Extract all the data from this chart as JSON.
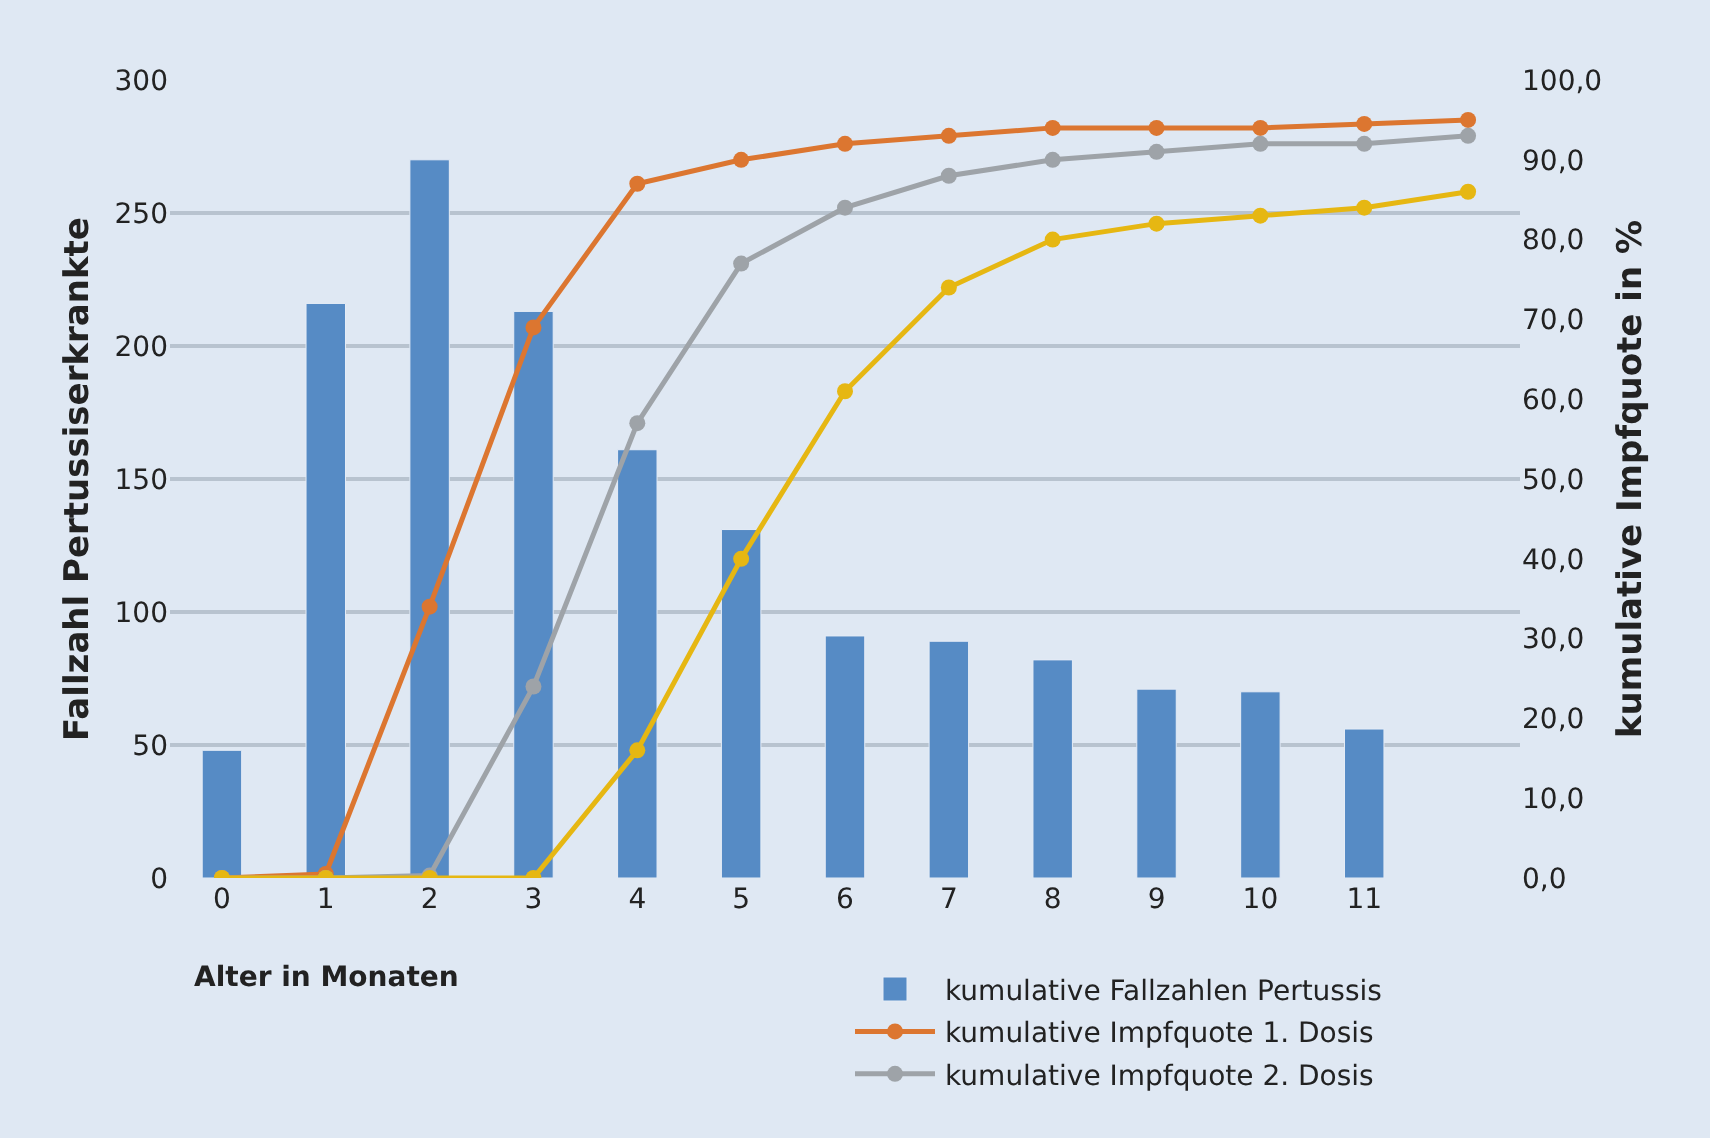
{
  "chart_data": {
    "type": "bar",
    "xlabel": "Alter in Monaten",
    "ylabel": "Fallzahl Pertussiserkrankte",
    "y2label": "kumulative Impfquote in %",
    "categories": [
      "0",
      "1",
      "2",
      "3",
      "4",
      "5",
      "6",
      "7",
      "8",
      "9",
      "10",
      "11",
      null
    ],
    "series": [
      {
        "name": "kumulative Fallzahlen Pertussis",
        "color": "#568bc5",
        "values": [
          48,
          216,
          270,
          213,
          161,
          131,
          91,
          89,
          82,
          71,
          70,
          56,
          null
        ]
      },
      {
        "name": "kumulative Impfquote 1. Dosis",
        "type": "line",
        "axis": "y2",
        "color": "#dc7630",
        "values": [
          0,
          0.5,
          34,
          69,
          87,
          90,
          92,
          93,
          94,
          94,
          94,
          94.5,
          95
        ]
      },
      {
        "name": "kumulative Impfquote 2. Dosis",
        "type": "line",
        "axis": "y2",
        "color": "#9ea3a8",
        "values": [
          0,
          0,
          0.3,
          24,
          57,
          77,
          84,
          88,
          90,
          91,
          92,
          92,
          93
        ]
      },
      {
        "type": "line",
        "axis": "y2",
        "color": "#e6b712",
        "values": [
          0,
          0,
          0,
          0,
          16,
          40,
          61,
          74,
          80,
          82,
          83,
          84,
          86
        ]
      }
    ],
    "ylim": [
      0,
      300
    ],
    "yticks": [
      0,
      50,
      100,
      150,
      200,
      250,
      300
    ],
    "y2lim": [
      0,
      100
    ],
    "y2ticks": [
      {
        "value": 0,
        "label": "0,0"
      },
      {
        "value": 10,
        "label": "10,0"
      },
      {
        "value": 20,
        "label": "20,0"
      },
      {
        "value": 30,
        "label": "30,0"
      },
      {
        "value": 40,
        "label": "40,0"
      },
      {
        "value": 50,
        "label": "50,0"
      },
      {
        "value": 60,
        "label": "60,0"
      },
      {
        "value": 70,
        "label": "70,0"
      },
      {
        "value": 80,
        "label": "80,0"
      },
      {
        "value": 90,
        "label": "90,0"
      },
      {
        "value": 100,
        "label": "100,0"
      }
    ],
    "grid": "y",
    "legend": "bottom",
    "marker": "circle",
    "line_style": "solid"
  }
}
